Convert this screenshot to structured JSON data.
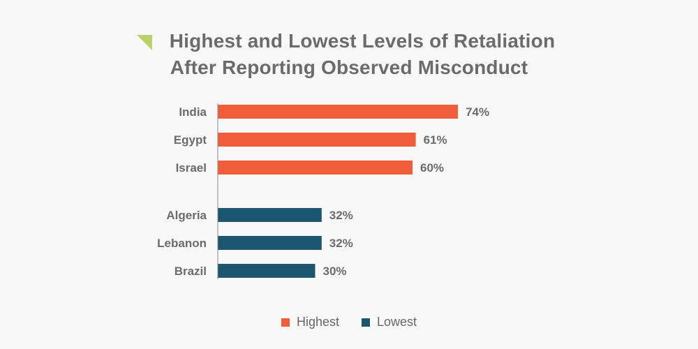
{
  "title_line_1": "Highest and Lowest Levels of Retaliation",
  "title_line_2": "After Reporting Observed Misconduct",
  "colors": {
    "background": "#f8f8f8",
    "highest": "#f05d3b",
    "lowest": "#1b566e",
    "title_mark": "#b9d36a",
    "text": "#6b6b6b"
  },
  "chart_data": {
    "type": "bar",
    "orientation": "horizontal",
    "title": "Highest and Lowest Levels of Retaliation After Reporting Observed Misconduct",
    "xlabel": "",
    "ylabel": "",
    "xlim": [
      0,
      100
    ],
    "grid": false,
    "legend_placement": "bottom-center",
    "groups": [
      {
        "name": "Highest",
        "color": "#f05d3b",
        "categories": [
          "India",
          "Egypt",
          "Israel"
        ],
        "values": [
          74,
          61,
          60
        ],
        "value_labels": [
          "74%",
          "61%",
          "60%"
        ]
      },
      {
        "name": "Lowest",
        "color": "#1b566e",
        "categories": [
          "Algeria",
          "Lebanon",
          "Brazil"
        ],
        "values": [
          32,
          32,
          30
        ],
        "value_labels": [
          "32%",
          "32%",
          "30%"
        ]
      }
    ]
  }
}
